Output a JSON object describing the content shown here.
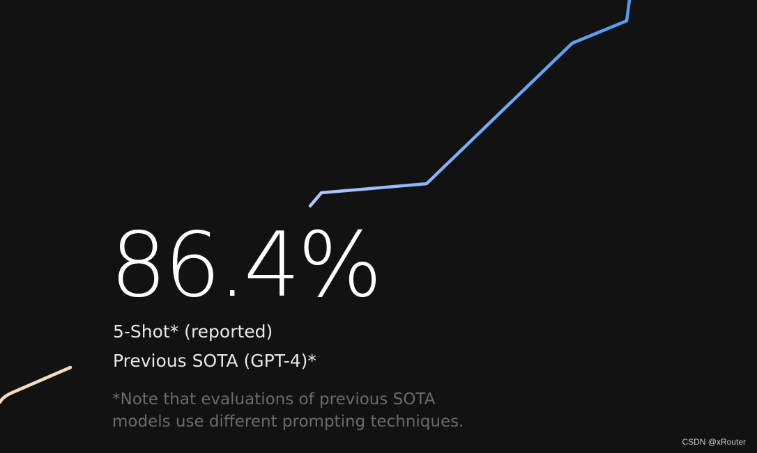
{
  "stat": {
    "value": "86.4%",
    "method": "5-Shot* (reported)",
    "comparison": "Previous SOTA (GPT-4)*"
  },
  "note": {
    "line1": "*Note that evaluations of previous SOTA",
    "line2": "models use different prompting techniques."
  },
  "watermark": "CSDN @xRouter",
  "colors": {
    "background": "#121213",
    "blue_line": "#5aa2f5",
    "blue_line_start": "#a9c2ff",
    "cream_line": "#f3dcc0",
    "stat_text": "#ffffff",
    "note_text": "#6b6b6e"
  }
}
